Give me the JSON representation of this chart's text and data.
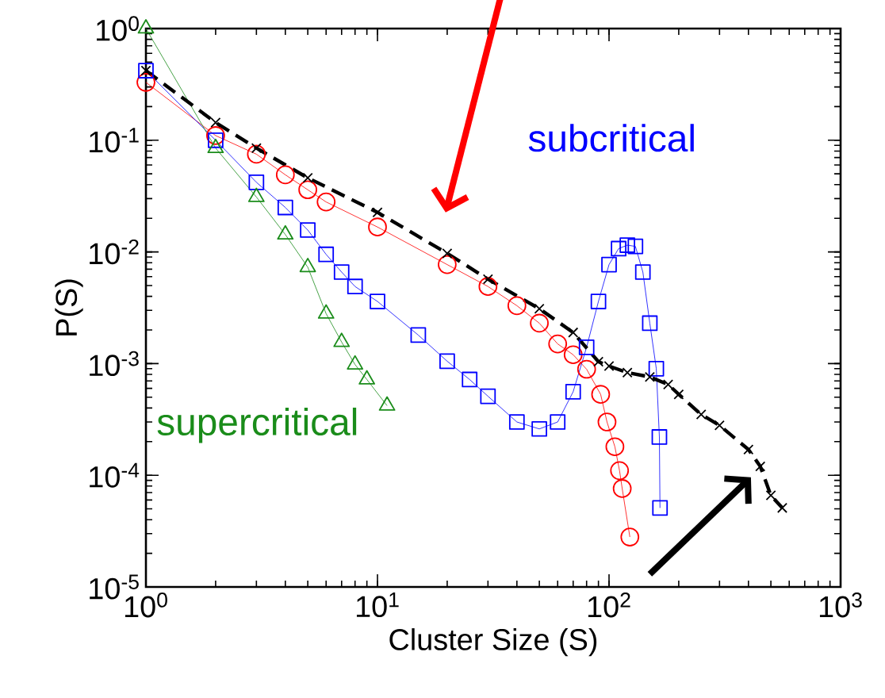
{
  "chart_data": {
    "type": "line",
    "log": "xy",
    "xlabel": "Cluster Size (S)",
    "ylabel": "P(S)",
    "xlim": [
      1,
      1000
    ],
    "ylim": [
      1e-05,
      1
    ],
    "xticks": [
      {
        "value": 1,
        "label": "10$^{0}$"
      },
      {
        "value": 10,
        "label": "10$^{1}$"
      },
      {
        "value": 100,
        "label": "10$^{2}$"
      },
      {
        "value": 1000,
        "label": "10$^{3}$"
      }
    ],
    "yticks": [
      {
        "value": 1e-05,
        "label": "10$^{-5}$"
      },
      {
        "value": 0.0001,
        "label": "10$^{-4}$"
      },
      {
        "value": 0.001,
        "label": "10$^{-3}$"
      },
      {
        "value": 0.01,
        "label": "10$^{-2}$"
      },
      {
        "value": 0.1,
        "label": "10$^{-1}$"
      },
      {
        "value": 1,
        "label": "10$^{0}$"
      }
    ],
    "series": [
      {
        "color": "#ff0000",
        "marker": "circle",
        "x": [
          1,
          2,
          3,
          4,
          5,
          6,
          10,
          20,
          30,
          40,
          50,
          60,
          70,
          80,
          92,
          98,
          106,
          111,
          114,
          123
        ],
        "values": [
          0.33,
          0.11,
          0.075,
          0.049,
          0.036,
          0.028,
          0.0167,
          0.0077,
          0.0049,
          0.0033,
          0.0023,
          0.0015,
          0.0012,
          0.00089,
          0.00053,
          0.0003,
          0.00018,
          0.00011,
          7.6e-05,
          2.8e-05
        ]
      },
      {
        "name": "subcritical",
        "color": "#0000ff",
        "marker": "square",
        "x": [
          1,
          2,
          3,
          4,
          5,
          6,
          7,
          8,
          10,
          15,
          20,
          25,
          30,
          40,
          50,
          60,
          70,
          80,
          90,
          100,
          110,
          120,
          130,
          140,
          150,
          160,
          165,
          166
        ],
        "values": [
          0.42,
          0.1,
          0.042,
          0.025,
          0.0157,
          0.0095,
          0.0066,
          0.0049,
          0.0036,
          0.0018,
          0.00105,
          0.00072,
          0.00051,
          0.0003,
          0.00026,
          0.0003,
          0.00056,
          0.0014,
          0.0036,
          0.0077,
          0.0107,
          0.0115,
          0.0112,
          0.0066,
          0.0023,
          0.0009,
          0.00022,
          5.1e-05
        ]
      },
      {
        "name": "supercritical",
        "color": "#1a8c1a",
        "marker": "triangle",
        "x": [
          1,
          2,
          3,
          4,
          5,
          6,
          7,
          8,
          9,
          11
        ],
        "values": [
          1,
          0.085,
          0.031,
          0.0143,
          0.0073,
          0.0028,
          0.00156,
          0.00098,
          0.00072,
          0.00042
        ]
      },
      {
        "color": "#000000",
        "marker": "cross",
        "line_style": "dashed",
        "x": [
          1,
          2,
          3,
          5,
          10,
          20,
          30,
          50,
          70,
          90,
          100,
          120,
          150,
          180,
          200,
          250,
          300,
          400,
          450,
          500,
          560
        ],
        "values": [
          0.42,
          0.144,
          0.085,
          0.046,
          0.0226,
          0.0097,
          0.0057,
          0.0031,
          0.0019,
          0.00104,
          0.00095,
          0.00083,
          0.00076,
          0.00065,
          0.00053,
          0.00035,
          0.00028,
          0.00017,
          0.00012,
          6.6e-05,
          5.1e-05
        ]
      }
    ]
  }
}
